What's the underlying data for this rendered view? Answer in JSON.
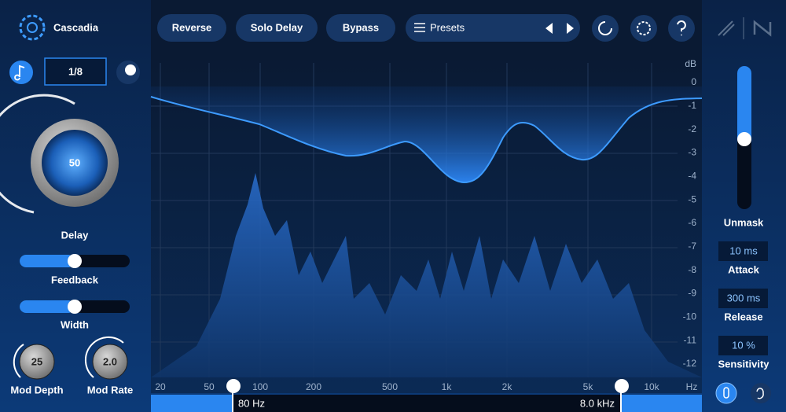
{
  "header": {
    "brand": "Cascadia",
    "buttons": [
      "Reverse",
      "Solo Delay",
      "Bypass"
    ],
    "presets": "Presets"
  },
  "left_panel": {
    "sync_value": "1/8",
    "delay": {
      "value": 50,
      "label": "Delay"
    },
    "feedback": {
      "label": "Feedback"
    },
    "width": {
      "label": "Width"
    },
    "mod_depth": {
      "value": 25,
      "label": "Mod Depth"
    },
    "mod_rate": {
      "value": "2.0",
      "label": "Mod Rate"
    }
  },
  "display": {
    "db_unit": "dB",
    "db_ticks": [
      0,
      -1,
      -2,
      -3,
      -4,
      -5,
      -6,
      -7,
      -8,
      -9,
      -10,
      -11,
      -12
    ],
    "freq_ticks": [
      "20",
      "50",
      "100",
      "200",
      "500",
      "1k",
      "2k",
      "5k",
      "10k",
      "Hz"
    ],
    "low_cut": "80 Hz",
    "high_cut": "8.0 kHz"
  },
  "right_panel": {
    "unmask_label": "Unmask",
    "attack": {
      "value": "10 ms",
      "label": "Attack"
    },
    "release": {
      "value": "300 ms",
      "label": "Release"
    },
    "sensitivity": {
      "value": "10 %",
      "label": "Sensitivity"
    }
  }
}
